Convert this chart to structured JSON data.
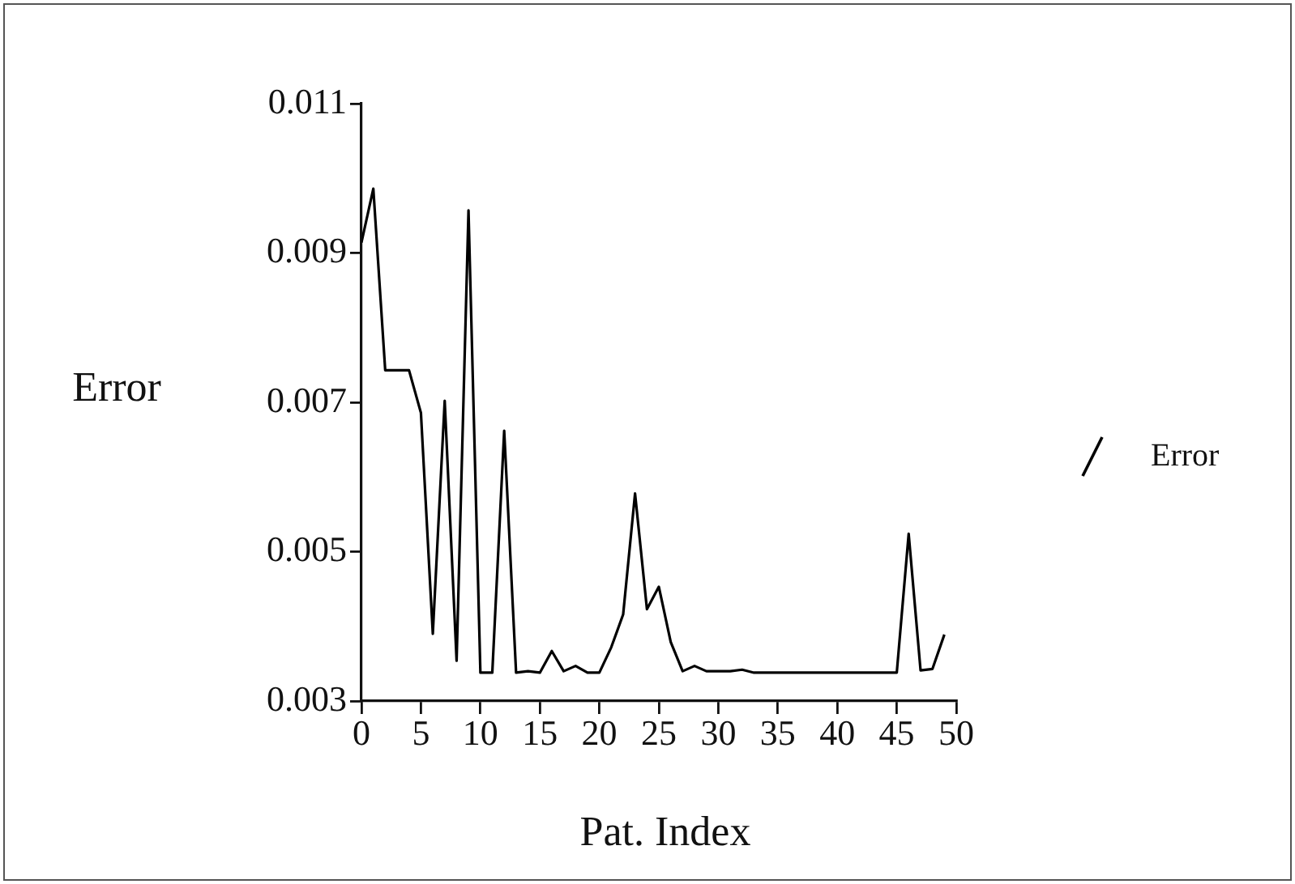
{
  "chart_data": {
    "type": "line",
    "xlabel": "Pat. Index",
    "ylabel": "Error",
    "x": [
      0,
      1,
      2,
      3,
      4,
      5,
      6,
      7,
      8,
      9,
      10,
      11,
      12,
      13,
      14,
      15,
      16,
      17,
      18,
      19,
      20,
      21,
      22,
      23,
      24,
      25,
      26,
      27,
      28,
      29,
      30,
      31,
      32,
      33,
      34,
      35,
      36,
      37,
      38,
      39,
      40,
      41,
      42,
      43,
      44,
      45,
      46,
      47,
      48,
      49
    ],
    "series": [
      {
        "name": "Error",
        "color": "#000000",
        "values": [
          0.00914,
          0.00986,
          0.00743,
          0.00743,
          0.00743,
          0.00686,
          0.0039,
          0.00702,
          0.00354,
          0.00957,
          0.00338,
          0.00338,
          0.00662,
          0.00338,
          0.0034,
          0.00338,
          0.00367,
          0.0034,
          0.00347,
          0.00338,
          0.00338,
          0.00372,
          0.00416,
          0.00578,
          0.00423,
          0.00453,
          0.00379,
          0.0034,
          0.00347,
          0.0034,
          0.0034,
          0.0034,
          0.00342,
          0.00338,
          0.00338,
          0.00338,
          0.00338,
          0.00338,
          0.00338,
          0.00338,
          0.00338,
          0.00338,
          0.00338,
          0.00338,
          0.00338,
          0.00338,
          0.00524,
          0.00341,
          0.00343,
          0.00389
        ]
      }
    ],
    "xlim": [
      0,
      50
    ],
    "xticks": [
      0,
      5,
      10,
      15,
      20,
      25,
      30,
      35,
      40,
      45,
      50
    ],
    "ylim": [
      0.003,
      0.011
    ],
    "yticks": [
      0.003,
      0.005,
      0.007,
      0.009,
      0.011
    ],
    "grid": false,
    "legend": "right",
    "marker": "none",
    "line_style": "solid"
  }
}
